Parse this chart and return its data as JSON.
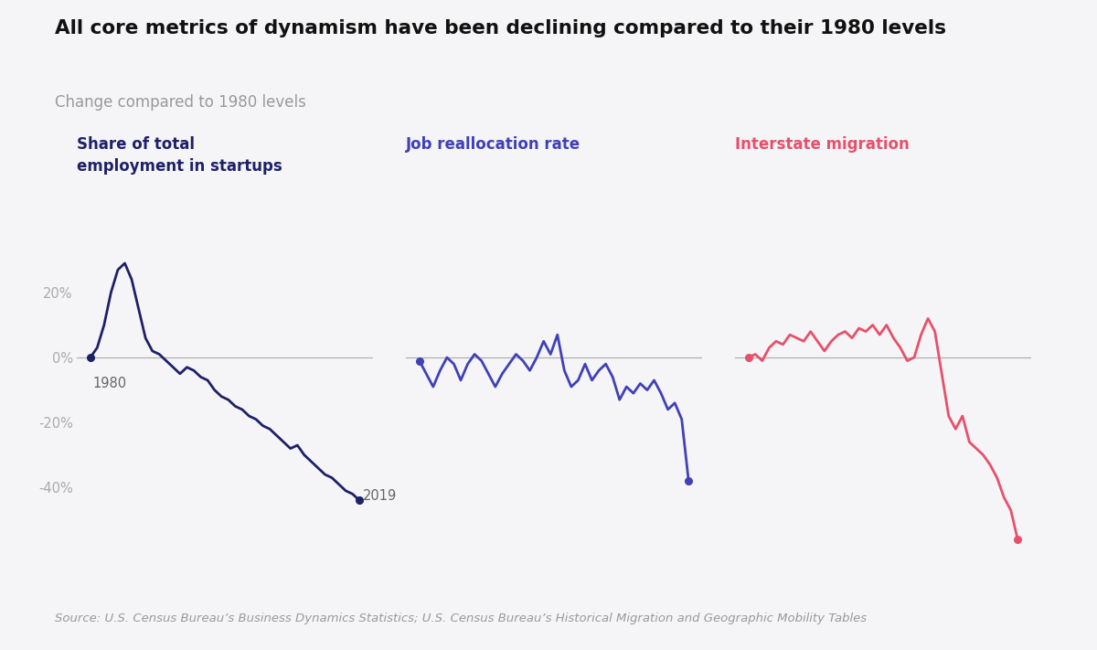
{
  "title": "All core metrics of dynamism have been declining compared to their 1980 levels",
  "subtitle": "Change compared to 1980 levels",
  "background_color": "#f5f5f8",
  "title_fontsize": 15.5,
  "subtitle_fontsize": 12,
  "source_text": "Source: U.S. Census Bureau’s Business Dynamics Statistics; U.S. Census Bureau’s Historical Migration and Geographic Mobility Tables",
  "series1_label": "Share of total\nemployment in startups",
  "series1_color": "#1e2068",
  "series1_years": [
    1980,
    1981,
    1982,
    1983,
    1984,
    1985,
    1986,
    1987,
    1988,
    1989,
    1990,
    1991,
    1992,
    1993,
    1994,
    1995,
    1996,
    1997,
    1998,
    1999,
    2000,
    2001,
    2002,
    2003,
    2004,
    2005,
    2006,
    2007,
    2008,
    2009,
    2010,
    2011,
    2012,
    2013,
    2014,
    2015,
    2016,
    2017,
    2018,
    2019
  ],
  "series1_values": [
    0,
    3,
    10,
    20,
    27,
    29,
    24,
    15,
    6,
    2,
    1,
    -1,
    -3,
    -5,
    -3,
    -4,
    -6,
    -7,
    -10,
    -12,
    -13,
    -15,
    -16,
    -18,
    -19,
    -21,
    -22,
    -24,
    -26,
    -28,
    -27,
    -30,
    -32,
    -34,
    -36,
    -37,
    -39,
    -41,
    -42,
    -44
  ],
  "series2_label": "Job reallocation rate",
  "series2_color": "#4040b8",
  "series2_years": [
    1980,
    1981,
    1982,
    1983,
    1984,
    1985,
    1986,
    1987,
    1988,
    1989,
    1990,
    1991,
    1992,
    1993,
    1994,
    1995,
    1996,
    1997,
    1998,
    1999,
    2000,
    2001,
    2002,
    2003,
    2004,
    2005,
    2006,
    2007,
    2008,
    2009,
    2010,
    2011,
    2012,
    2013,
    2014,
    2015,
    2016,
    2017,
    2018,
    2019
  ],
  "series2_values": [
    -1,
    -5,
    -9,
    -4,
    0,
    -2,
    -7,
    -2,
    1,
    -1,
    -5,
    -9,
    -5,
    -2,
    1,
    -1,
    -4,
    0,
    5,
    1,
    7,
    -4,
    -9,
    -7,
    -2,
    -7,
    -4,
    -2,
    -6,
    -13,
    -9,
    -11,
    -8,
    -10,
    -7,
    -11,
    -16,
    -14,
    -19,
    -38
  ],
  "series3_label": "Interstate migration",
  "series3_color": "#e8506a",
  "series3_years": [
    1980,
    1981,
    1982,
    1983,
    1984,
    1985,
    1986,
    1987,
    1988,
    1989,
    1990,
    1991,
    1992,
    1993,
    1994,
    1995,
    1996,
    1997,
    1998,
    1999,
    2000,
    2001,
    2002,
    2003,
    2004,
    2005,
    2006,
    2007,
    2008,
    2009,
    2010,
    2011,
    2012,
    2013,
    2014,
    2015,
    2016,
    2017,
    2018,
    2019
  ],
  "series3_values": [
    0,
    1,
    -1,
    3,
    5,
    4,
    7,
    6,
    5,
    8,
    5,
    2,
    5,
    7,
    8,
    6,
    9,
    8,
    10,
    7,
    10,
    6,
    3,
    -1,
    0,
    7,
    12,
    8,
    -5,
    -18,
    -22,
    -18,
    -26,
    -28,
    -30,
    -33,
    -37,
    -43,
    -47,
    -56
  ],
  "ylim": [
    -62,
    38
  ],
  "yticks": [
    -40,
    -20,
    0,
    20
  ],
  "ytick_labels": [
    "-40%",
    "-20%",
    "0%",
    "20%"
  ],
  "zero_line_color": "#b0b0b0",
  "title_color": "#111111",
  "subtitle_color": "#999999",
  "year_label_color": "#666666",
  "tick_label_color": "#aaaaaa"
}
